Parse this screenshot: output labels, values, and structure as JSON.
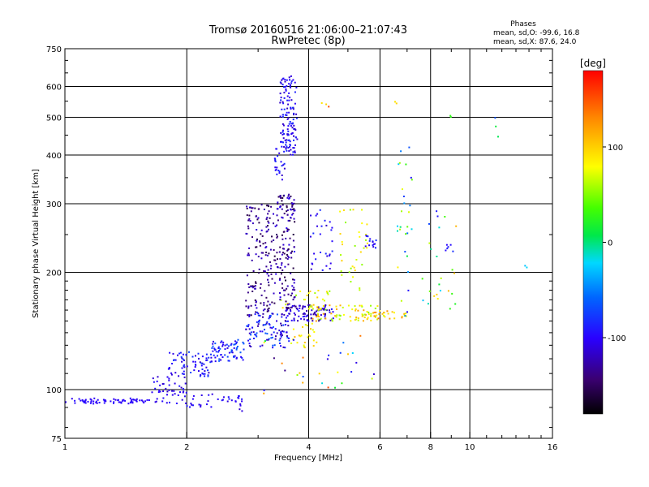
{
  "header": {
    "title": "Tromsø 20160516 21:06:00–21:07:43",
    "subtitle": "RwPretec (8p)"
  },
  "phases": {
    "heading": "Phases",
    "line_o": "mean, sd,O: -99.6, 16.8",
    "line_x": "mean, sd,X:  87.6, 24.0"
  },
  "chart_data": {
    "type": "scatter",
    "xlabel": "Frequency [MHz]",
    "ylabel": "Stationary phase Virtual Height [km]",
    "x_scale": "log",
    "y_scale": "log",
    "xlim": [
      1,
      16
    ],
    "ylim": [
      75,
      750
    ],
    "grid": true,
    "x_ticks": [
      1,
      2,
      4,
      6,
      8,
      10,
      16
    ],
    "x_tick_labels": [
      "1",
      "2",
      "4",
      "6",
      "8",
      "10",
      "16"
    ],
    "y_ticks": [
      75,
      100,
      200,
      300,
      400,
      500,
      600,
      750
    ],
    "y_tick_labels": [
      "75",
      "100",
      "200",
      "300",
      "400",
      "500",
      "600",
      "750"
    ],
    "colorbar": {
      "label": "[deg]",
      "range": [
        -180,
        180
      ],
      "ticks": [
        -100,
        0,
        100
      ],
      "tick_labels": [
        "-100",
        "0",
        "100"
      ]
    },
    "series": [
      {
        "x_range": [
          1.0,
          1.6
        ],
        "y_range": [
          92,
          95
        ],
        "phase_range": [
          -105,
          -95
        ],
        "n": 70
      },
      {
        "x_range": [
          1.6,
          2.0
        ],
        "y_range": [
          92,
          100
        ],
        "phase_range": [
          -110,
          -95
        ],
        "n": 25
      },
      {
        "x_range": [
          2.0,
          2.7
        ],
        "y_range": [
          90,
          98
        ],
        "phase_range": [
          -110,
          -90
        ],
        "n": 30
      },
      {
        "x_range": [
          2.7,
          2.75
        ],
        "y_range": [
          88,
          96
        ],
        "phase_range": [
          -120,
          -80
        ],
        "n": 6
      },
      {
        "x_range": [
          1.65,
          2.0
        ],
        "y_range": [
          98,
          110
        ],
        "phase_range": [
          -120,
          -90
        ],
        "n": 25
      },
      {
        "x_range": [
          1.8,
          2.3
        ],
        "y_range": [
          108,
          125
        ],
        "phase_range": [
          -120,
          -70
        ],
        "n": 70
      },
      {
        "x_range": [
          2.3,
          2.8
        ],
        "y_range": [
          118,
          135
        ],
        "phase_range": [
          -110,
          -60
        ],
        "n": 70
      },
      {
        "x_range": [
          2.8,
          3.6
        ],
        "y_range": [
          128,
          158
        ],
        "phase_range": [
          -130,
          -60
        ],
        "n": 110
      },
      {
        "x_range": [
          3.5,
          4.6
        ],
        "y_range": [
          150,
          165
        ],
        "phase_range": [
          -140,
          -90
        ],
        "n": 90
      },
      {
        "x_range": [
          4.0,
          6.0
        ],
        "y_range": [
          150,
          165
        ],
        "phase_range": [
          50,
          130
        ],
        "n": 70
      },
      {
        "x_range": [
          5.4,
          7.0
        ],
        "y_range": [
          152,
          160
        ],
        "phase_range": [
          60,
          140
        ],
        "n": 30
      },
      {
        "x_range": [
          3.4,
          4.6
        ],
        "y_range": [
          160,
          180
        ],
        "phase_range": [
          40,
          110
        ],
        "n": 25
      },
      {
        "x_range": [
          3.6,
          4.2
        ],
        "y_range": [
          128,
          148
        ],
        "phase_range": [
          70,
          110
        ],
        "n": 25
      },
      {
        "x_range": [
          2.8,
          3.3
        ],
        "y_range": [
          155,
          300
        ],
        "phase_range": [
          -160,
          -110
        ],
        "n": 150
      },
      {
        "x_range": [
          3.3,
          3.7
        ],
        "y_range": [
          160,
          320
        ],
        "phase_range": [
          -160,
          -100
        ],
        "n": 150
      },
      {
        "x_range": [
          3.4,
          3.75
        ],
        "y_range": [
          400,
          640
        ],
        "phase_range": [
          -120,
          -80
        ],
        "n": 130
      },
      {
        "x_range": [
          3.3,
          3.5
        ],
        "y_range": [
          340,
          420
        ],
        "phase_range": [
          -120,
          -80
        ],
        "n": 25
      },
      {
        "x_range": [
          4.0,
          4.6
        ],
        "y_range": [
          200,
          300
        ],
        "phase_range": [
          -120,
          -80
        ],
        "n": 30
      },
      {
        "x_range": [
          4.7,
          5.6
        ],
        "y_range": [
          180,
          290
        ],
        "phase_range": [
          50,
          100
        ],
        "n": 35
      },
      {
        "x_range": [
          5.5,
          5.9
        ],
        "y_range": [
          230,
          250
        ],
        "phase_range": [
          -110,
          -80
        ],
        "n": 15
      },
      {
        "x_range": [
          6.6,
          7.2
        ],
        "y_range": [
          150,
          420
        ],
        "phase_range": [
          -110,
          100
        ],
        "n": 30
      },
      {
        "x_range": [
          7.6,
          9.3
        ],
        "y_range": [
          160,
          290
        ],
        "phase_range": [
          -100,
          120
        ],
        "n": 25
      },
      {
        "x_range": [
          8.6,
          9.2
        ],
        "y_range": [
          225,
          240
        ],
        "phase_range": [
          -100,
          -80
        ],
        "n": 6
      },
      {
        "x_range": [
          3.0,
          6.0
        ],
        "y_range": [
          95,
          140
        ],
        "phase_range": [
          -140,
          160
        ],
        "n": 30
      },
      {
        "x_range": [
          4.2,
          4.5
        ],
        "y_range": [
          520,
          620
        ],
        "phase_range": [
          80,
          170
        ],
        "n": 3
      },
      {
        "x_range": [
          6.5,
          7.0
        ],
        "y_range": [
          540,
          560
        ],
        "phase_range": [
          90,
          110
        ],
        "n": 2
      },
      {
        "x_range": [
          8.8,
          9.0
        ],
        "y_range": [
          500,
          510
        ],
        "phase_range": [
          20,
          40
        ],
        "n": 2
      },
      {
        "x_range": [
          11.5,
          12.0
        ],
        "y_range": [
          440,
          500
        ],
        "phase_range": [
          -90,
          100
        ],
        "n": 3
      },
      {
        "x_range": [
          13.5,
          14.0
        ],
        "y_range": [
          200,
          210
        ],
        "phase_range": [
          -40,
          -20
        ],
        "n": 2
      }
    ]
  }
}
